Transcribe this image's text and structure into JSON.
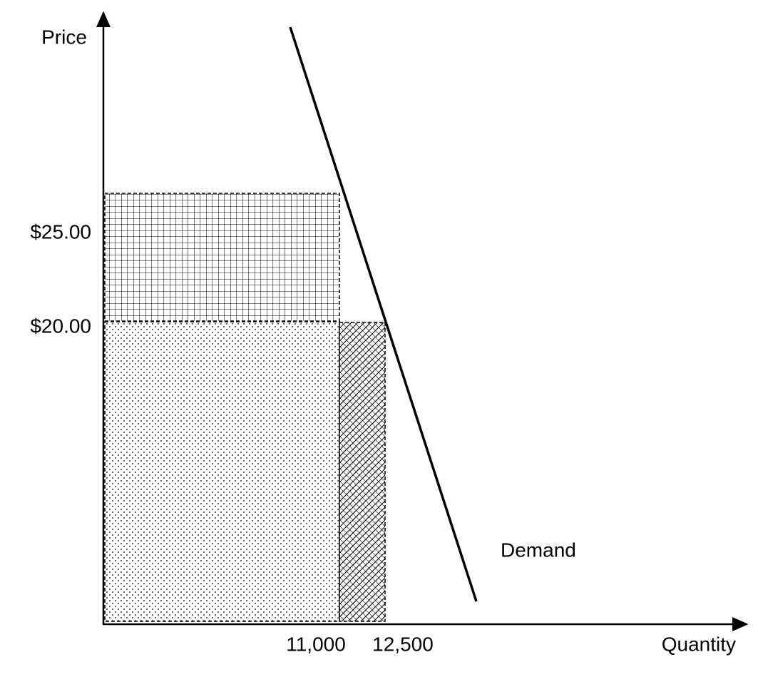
{
  "axes": {
    "y_label": "Price",
    "x_label": "Quantity"
  },
  "price_labels": [
    "$25.00",
    "$20.00"
  ],
  "quantity_labels": [
    "11,000",
    "12,500"
  ],
  "curve_label": "Demand"
}
